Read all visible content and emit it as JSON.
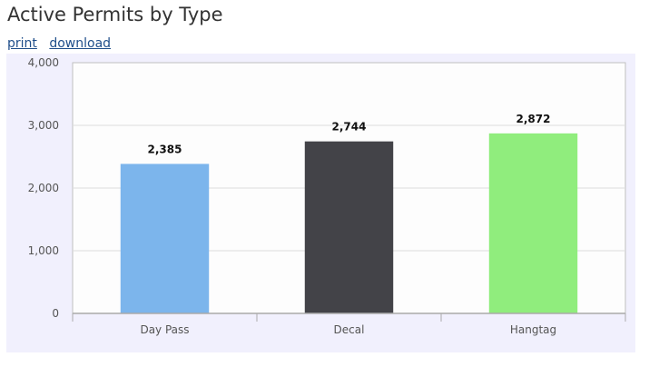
{
  "page": {
    "title": "Active Permits by Type",
    "links": {
      "print": "print",
      "download": "download"
    }
  },
  "chart_data": {
    "type": "bar",
    "title": "",
    "xlabel": "",
    "ylabel": "",
    "categories": [
      "Day Pass",
      "Decal",
      "Hangtag"
    ],
    "values": [
      2385,
      2744,
      2872
    ],
    "data_labels": [
      "2,385",
      "2,744",
      "2,872"
    ],
    "colors": [
      "#7cb5ec",
      "#434348",
      "#90ed7d"
    ],
    "ylim": [
      0,
      4000
    ],
    "yticks": [
      0,
      1000,
      2000,
      3000,
      4000
    ],
    "ytick_labels": [
      "0",
      "1,000",
      "2,000",
      "3,000",
      "4,000"
    ],
    "grid": true,
    "legend": "none"
  }
}
